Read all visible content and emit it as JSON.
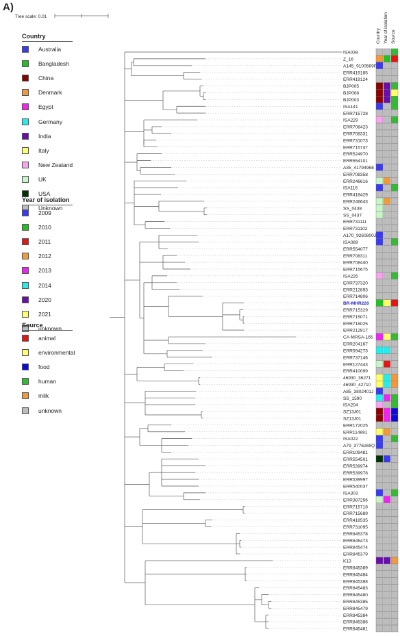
{
  "panel_label": "A)",
  "tree_scale_label": "Tree scale: 0.01",
  "colors": {
    "Australia": "#3a3af0",
    "Bangladesh": "#22c022",
    "China": "#8b0000",
    "Denmark": "#f29a3a",
    "Egypt": "#f222f2",
    "Germany": "#22eeee",
    "India": "#6a0dad",
    "Italy": "#ffff66",
    "New Zealand": "#f7a4ee",
    "UK": "#c8f5c8",
    "USA": "#003300",
    "Unknown": "#bdbdbd",
    "2009": "#3a3af0",
    "2010": "#22c022",
    "2011": "#e81414",
    "2012": "#f29a3a",
    "2013": "#f222f2",
    "2014": "#22eeee",
    "2020": "#6a0dad",
    "2021": "#ffff66",
    "unknown": "#bdbdbd",
    "animal": "#e81414",
    "environmental": "#ffff66",
    "food": "#0a0adc",
    "human": "#33bb33",
    "milk": "#f29a3a",
    "highlight_label": "#2222cc"
  },
  "legends": [
    {
      "title": "Country",
      "items": [
        "Australia",
        "Bangladesh",
        "China",
        "Denmark",
        "Egypt",
        "Germany",
        "India",
        "Italy",
        "New Zealand",
        "UK",
        "USA",
        "Unknown"
      ]
    },
    {
      "title": "Year of isolation",
      "items": [
        "2009",
        "2010",
        "2011",
        "2012",
        "2013",
        "2014",
        "2020",
        "2021",
        "unknown"
      ]
    },
    {
      "title": "Source",
      "items": [
        "animal",
        "environmental",
        "food",
        "human",
        "milk",
        "unknown"
      ]
    }
  ],
  "column_headers": [
    "Country",
    "Year of isolation",
    "Source"
  ],
  "highlighted_taxon": "BR-MHR220",
  "taxa": [
    {
      "name": "ISA039",
      "country": "Unknown",
      "year": "unknown",
      "source": "human"
    },
    {
      "name": "Z_16",
      "country": "Denmark",
      "year": "2010",
      "source": "animal"
    },
    {
      "name": "A145_9100569P",
      "country": "Australia",
      "year": "unknown",
      "source": "unknown"
    },
    {
      "name": "ERR419185",
      "country": "Unknown",
      "year": "unknown",
      "source": "unknown"
    },
    {
      "name": "ERR419124",
      "country": "Unknown",
      "year": "unknown",
      "source": "unknown"
    },
    {
      "name": "BJP005",
      "country": "China",
      "year": "2020",
      "source": "human"
    },
    {
      "name": "BJP008",
      "country": "China",
      "year": "2020",
      "source": "environmental"
    },
    {
      "name": "BJP003",
      "country": "China",
      "year": "2020",
      "source": "human"
    },
    {
      "name": "ISA141",
      "country": "Australia",
      "year": "unknown",
      "source": "human"
    },
    {
      "name": "ERR715728",
      "country": "Unknown",
      "year": "unknown",
      "source": "unknown"
    },
    {
      "name": "ISA229",
      "country": "New Zealand",
      "year": "unknown",
      "source": "human"
    },
    {
      "name": "ERR708423",
      "country": "Unknown",
      "year": "unknown",
      "source": "unknown"
    },
    {
      "name": "ERR708331",
      "country": "Unknown",
      "year": "unknown",
      "source": "unknown"
    },
    {
      "name": "ERR731073",
      "country": "Unknown",
      "year": "unknown",
      "source": "unknown"
    },
    {
      "name": "ERR715747",
      "country": "Unknown",
      "year": "unknown",
      "source": "unknown"
    },
    {
      "name": "ERR524970",
      "country": "Unknown",
      "year": "unknown",
      "source": "unknown"
    },
    {
      "name": "ERR554101",
      "country": "Unknown",
      "year": "unknown",
      "source": "unknown"
    },
    {
      "name": "A35_4179496E",
      "country": "Australia",
      "year": "unknown",
      "source": "unknown"
    },
    {
      "name": "ERR708358",
      "country": "Unknown",
      "year": "unknown",
      "source": "unknown"
    },
    {
      "name": "ERR246616",
      "country": "UK",
      "year": "2012",
      "source": "unknown"
    },
    {
      "name": "ISA116",
      "country": "Australia",
      "year": "unknown",
      "source": "human"
    },
    {
      "name": "ERR418429",
      "country": "Unknown",
      "year": "unknown",
      "source": "unknown"
    },
    {
      "name": "ERR246643",
      "country": "UK",
      "year": "2012",
      "source": "unknown"
    },
    {
      "name": "SS_0438",
      "country": "UK",
      "year": "unknown",
      "source": "unknown"
    },
    {
      "name": "SS_0437",
      "country": "UK",
      "year": "unknown",
      "source": "unknown"
    },
    {
      "name": "ERR731111",
      "country": "Unknown",
      "year": "unknown",
      "source": "unknown"
    },
    {
      "name": "ERR731102",
      "country": "Unknown",
      "year": "unknown",
      "source": "unknown"
    },
    {
      "name": "A170_9260800J",
      "country": "Australia",
      "year": "unknown",
      "source": "unknown"
    },
    {
      "name": "ISA089",
      "country": "Australia",
      "year": "unknown",
      "source": "human"
    },
    {
      "name": "ERR554077",
      "country": "Unknown",
      "year": "unknown",
      "source": "unknown"
    },
    {
      "name": "ERR708311",
      "country": "Unknown",
      "year": "unknown",
      "source": "unknown"
    },
    {
      "name": "ERR708440",
      "country": "Unknown",
      "year": "unknown",
      "source": "unknown"
    },
    {
      "name": "ERR715675",
      "country": "Unknown",
      "year": "unknown",
      "source": "unknown"
    },
    {
      "name": "ISA225",
      "country": "New Zealand",
      "year": "unknown",
      "source": "human"
    },
    {
      "name": "ERR737320",
      "country": "Unknown",
      "year": "unknown",
      "source": "unknown"
    },
    {
      "name": "ERR212893",
      "country": "Unknown",
      "year": "unknown",
      "source": "unknown"
    },
    {
      "name": "ERR714806",
      "country": "Unknown",
      "year": "unknown",
      "source": "unknown"
    },
    {
      "name": "BR-MHR220",
      "country": "Bangladesh",
      "year": "2021",
      "source": "animal"
    },
    {
      "name": "ERR715329",
      "country": "Unknown",
      "year": "unknown",
      "source": "unknown"
    },
    {
      "name": "ERR715071",
      "country": "Unknown",
      "year": "unknown",
      "source": "unknown"
    },
    {
      "name": "ERR715025",
      "country": "Unknown",
      "year": "unknown",
      "source": "unknown"
    },
    {
      "name": "ERR212817",
      "country": "Unknown",
      "year": "unknown",
      "source": "unknown"
    },
    {
      "name": "CA-MRSA-165",
      "country": "Egypt",
      "year": "2021",
      "source": "human"
    },
    {
      "name": "ERR204167",
      "country": "Unknown",
      "year": "unknown",
      "source": "unknown"
    },
    {
      "name": "ERR594273",
      "country": "Germany",
      "year": "2014",
      "source": "unknown"
    },
    {
      "name": "ERR737146",
      "country": "Unknown",
      "year": "unknown",
      "source": "unknown"
    },
    {
      "name": "ERR127443",
      "country": "UK",
      "year": "2011",
      "source": "unknown"
    },
    {
      "name": "ERR410099",
      "country": "Unknown",
      "year": "unknown",
      "source": "unknown"
    },
    {
      "name": "46930_36271",
      "country": "Italy",
      "year": "2014",
      "source": "milk"
    },
    {
      "name": "46930_42710",
      "country": "Italy",
      "year": "2014",
      "source": "milk"
    },
    {
      "name": "A85_3802401J",
      "country": "Australia",
      "year": "unknown",
      "source": "unknown"
    },
    {
      "name": "SS_1590",
      "country": "Germany",
      "year": "2013",
      "source": "human"
    },
    {
      "name": "ISA204",
      "country": "New Zealand",
      "year": "unknown",
      "source": "human"
    },
    {
      "name": "SZ13J01",
      "country": "China",
      "year": "2013",
      "source": "food"
    },
    {
      "name": "SZ13J01",
      "country": "China",
      "year": "2013",
      "source": "food"
    },
    {
      "name": "ERR172025",
      "country": "Unknown",
      "year": "unknown",
      "source": "unknown"
    },
    {
      "name": "ERR114881",
      "country": "Italy",
      "year": "2012",
      "source": "unknown"
    },
    {
      "name": "ISA022",
      "country": "Australia",
      "year": "unknown",
      "source": "human"
    },
    {
      "name": "A79_3776269Q",
      "country": "Australia",
      "year": "unknown",
      "source": "unknown"
    },
    {
      "name": "ERR109481",
      "country": "Unknown",
      "year": "unknown",
      "source": "unknown"
    },
    {
      "name": "ERR554501",
      "country": "USA",
      "year": "2009",
      "source": "unknown"
    },
    {
      "name": "ERR539974",
      "country": "Unknown",
      "year": "unknown",
      "source": "unknown"
    },
    {
      "name": "ERR539978",
      "country": "Unknown",
      "year": "unknown",
      "source": "unknown"
    },
    {
      "name": "ERR539997",
      "country": "Unknown",
      "year": "unknown",
      "source": "unknown"
    },
    {
      "name": "ERR540037",
      "country": "Unknown",
      "year": "unknown",
      "source": "unknown"
    },
    {
      "name": "ISA303",
      "country": "Australia",
      "year": "unknown",
      "source": "human"
    },
    {
      "name": "ERR387256",
      "country": "UK",
      "year": "2013",
      "source": "unknown"
    },
    {
      "name": "ERR715718",
      "country": "Unknown",
      "year": "unknown",
      "source": "unknown"
    },
    {
      "name": "ERR715689",
      "country": "Unknown",
      "year": "unknown",
      "source": "unknown"
    },
    {
      "name": "ERR418535",
      "country": "Unknown",
      "year": "unknown",
      "source": "unknown"
    },
    {
      "name": "ERR731095",
      "country": "Unknown",
      "year": "unknown",
      "source": "unknown"
    },
    {
      "name": "ERR845378",
      "country": "Unknown",
      "year": "unknown",
      "source": "unknown"
    },
    {
      "name": "ERR845473",
      "country": "Unknown",
      "year": "unknown",
      "source": "unknown"
    },
    {
      "name": "ERR845474",
      "country": "Unknown",
      "year": "unknown",
      "source": "unknown"
    },
    {
      "name": "ERR845379",
      "country": "Unknown",
      "year": "unknown",
      "source": "unknown"
    },
    {
      "name": "K13",
      "country": "India",
      "year": "2020",
      "source": "milk"
    },
    {
      "name": "ERR845389",
      "country": "Unknown",
      "year": "unknown",
      "source": "unknown"
    },
    {
      "name": "ERR845484",
      "country": "Unknown",
      "year": "unknown",
      "source": "unknown"
    },
    {
      "name": "ERR845388",
      "country": "Unknown",
      "year": "unknown",
      "source": "unknown"
    },
    {
      "name": "ERR845483",
      "country": "Unknown",
      "year": "unknown",
      "source": "unknown"
    },
    {
      "name": "ERR845480",
      "country": "Unknown",
      "year": "unknown",
      "source": "unknown"
    },
    {
      "name": "ERR845385",
      "country": "Unknown",
      "year": "unknown",
      "source": "unknown"
    },
    {
      "name": "ERR845479",
      "country": "Unknown",
      "year": "unknown",
      "source": "unknown"
    },
    {
      "name": "ERR845384",
      "country": "Unknown",
      "year": "unknown",
      "source": "unknown"
    },
    {
      "name": "ERR845386",
      "country": "Unknown",
      "year": "unknown",
      "source": "unknown"
    },
    {
      "name": "ERR845481",
      "country": "Unknown",
      "year": "unknown",
      "source": "unknown"
    }
  ]
}
